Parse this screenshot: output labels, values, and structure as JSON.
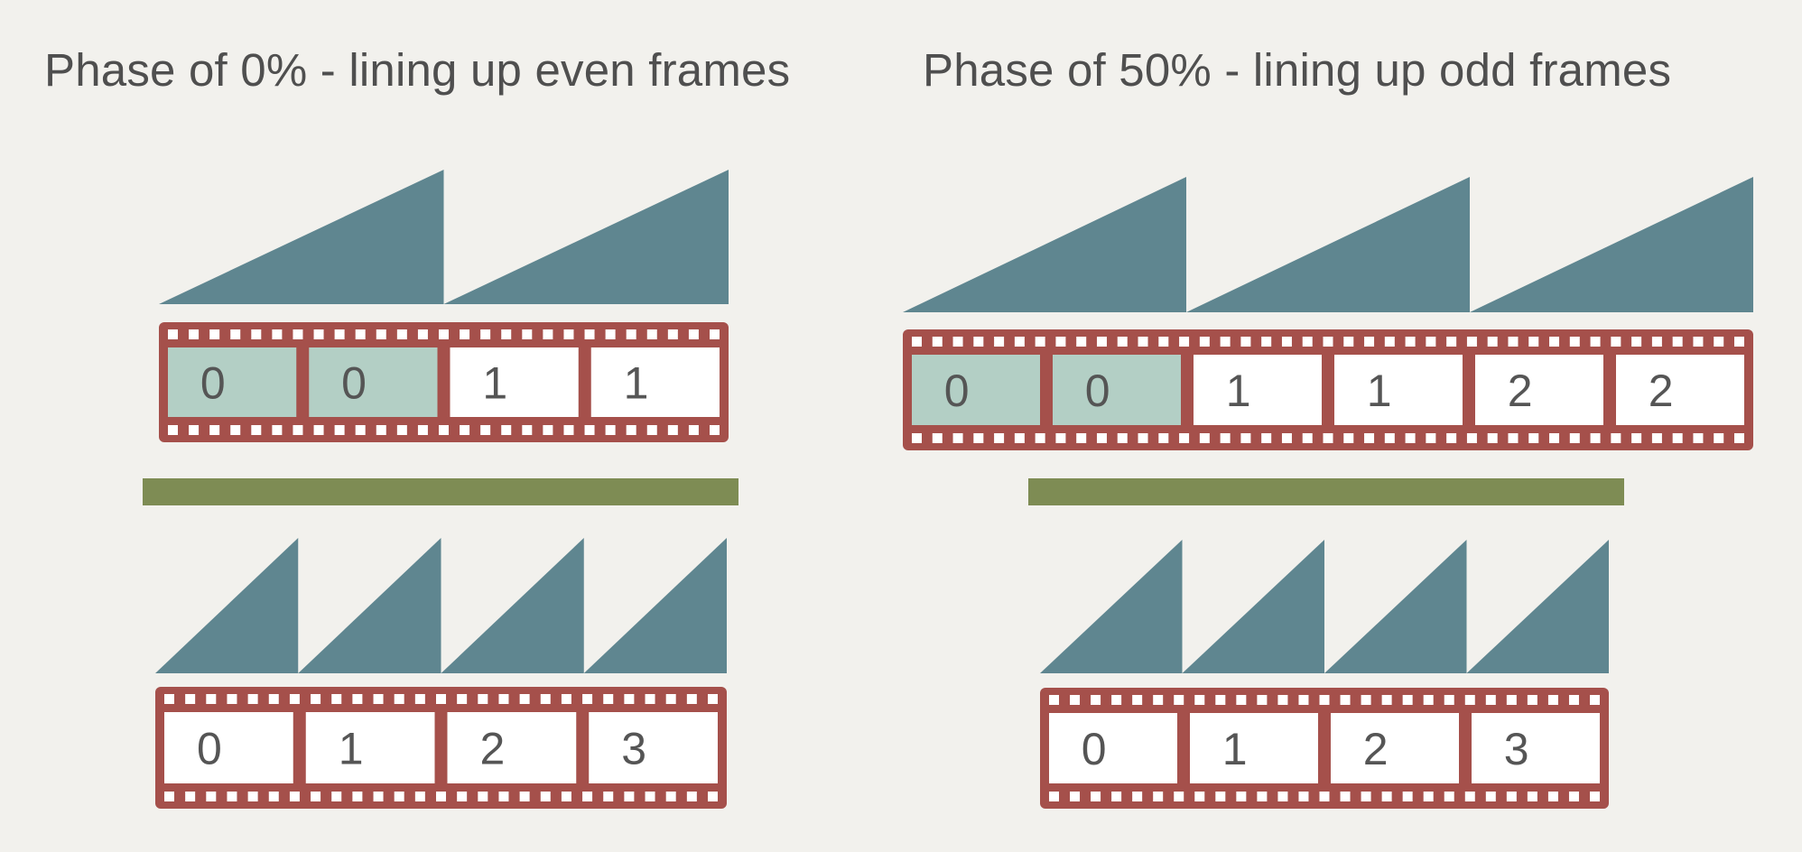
{
  "colors": {
    "background": "#f2f1ed",
    "wave": "#5f8690",
    "film": "#a5504b",
    "highlight": "#b3cfc5",
    "frame_fill": "#ffffff",
    "separator": "#7e8c54",
    "text": "#555555"
  },
  "panels": [
    {
      "title": "Phase of 0% - lining up even frames",
      "top_strip": {
        "wave_cycles": 2,
        "frames": [
          {
            "label": "0",
            "highlighted": true
          },
          {
            "label": "0",
            "highlighted": true
          },
          {
            "label": "1",
            "highlighted": false
          },
          {
            "label": "1",
            "highlighted": false
          }
        ]
      },
      "bottom_strip": {
        "wave_cycles": 4,
        "frames": [
          {
            "label": "0",
            "highlighted": false
          },
          {
            "label": "1",
            "highlighted": false
          },
          {
            "label": "2",
            "highlighted": false
          },
          {
            "label": "3",
            "highlighted": false
          }
        ]
      }
    },
    {
      "title": "Phase of 50% - lining up odd frames",
      "top_strip": {
        "wave_cycles": 3,
        "frames": [
          {
            "label": "0",
            "highlighted": true
          },
          {
            "label": "0",
            "highlighted": true
          },
          {
            "label": "1",
            "highlighted": false
          },
          {
            "label": "1",
            "highlighted": false
          },
          {
            "label": "2",
            "highlighted": false
          },
          {
            "label": "2",
            "highlighted": false
          }
        ]
      },
      "bottom_strip": {
        "wave_cycles": 4,
        "frames": [
          {
            "label": "0",
            "highlighted": false
          },
          {
            "label": "1",
            "highlighted": false
          },
          {
            "label": "2",
            "highlighted": false
          },
          {
            "label": "3",
            "highlighted": false
          }
        ]
      }
    }
  ]
}
